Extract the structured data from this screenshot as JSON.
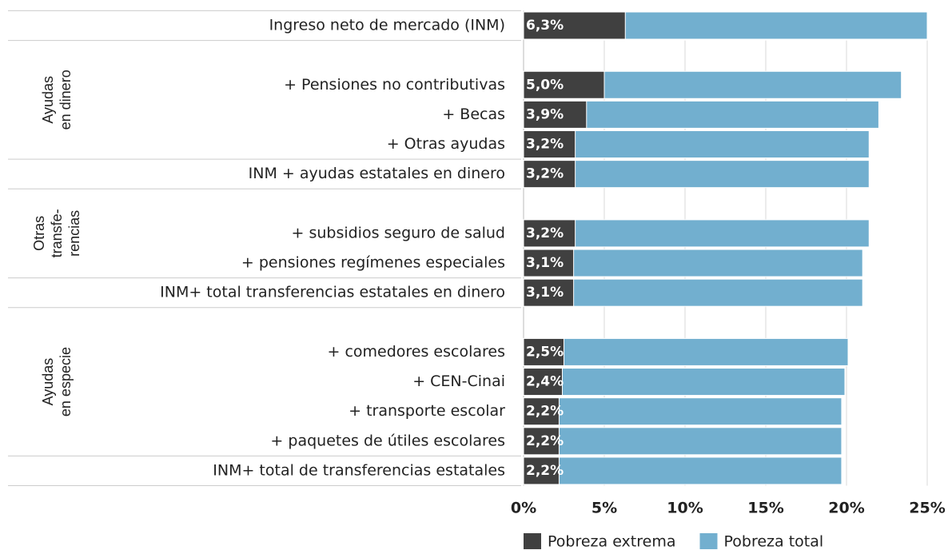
{
  "chart_data": {
    "type": "bar",
    "orientation": "horizontal",
    "overlap": true,
    "categories": [
      "Ingreso neto de mercado (INM)",
      null,
      "+ Pensiones no contributivas",
      "+ Becas",
      "+ Otras ayudas",
      "INM + ayudas estatales en dinero",
      null,
      "+ subsidios seguro de salud",
      "+ pensiones regímenes especiales",
      "INM+ total transferencias estatales en dinero",
      null,
      "+ comedores escolares",
      "+ CEN-Cinai",
      "+ transporte escolar",
      "+ paquetes de útiles escolares",
      "INM+ total de transferencias estatales"
    ],
    "groups": [
      [
        "Ayudas",
        "en dinero"
      ],
      [
        "Otras",
        "transfe-",
        "rencias"
      ],
      [
        "Ayudas",
        "en especie"
      ]
    ],
    "series": [
      {
        "name": "Pobreza total",
        "color": "#72afcf",
        "values": [
          25.0,
          null,
          23.4,
          22.0,
          21.4,
          21.4,
          null,
          21.4,
          21.0,
          21.0,
          null,
          20.1,
          19.9,
          19.7,
          19.7,
          19.7
        ]
      },
      {
        "name": "Pobreza extrema",
        "color": "#404040",
        "values": [
          6.3,
          null,
          5.0,
          3.9,
          3.2,
          3.2,
          null,
          3.2,
          3.1,
          3.1,
          null,
          2.5,
          2.4,
          2.2,
          2.2,
          2.2
        ],
        "value_labels": [
          "6,3%",
          null,
          "5,0%",
          "3,9%",
          "3,2%",
          "3,2%",
          null,
          "3,2%",
          "3,1%",
          "3,1%",
          null,
          "2,5%",
          "2,4%",
          "2,2%",
          "2,2%",
          "2,2%"
        ]
      }
    ],
    "legend_order": [
      1,
      0
    ],
    "xlim": [
      0,
      25
    ],
    "xticks": [
      {
        "value": 0,
        "label": "0%"
      },
      {
        "value": 5,
        "label": "5%"
      },
      {
        "value": 10,
        "label": "10%"
      },
      {
        "value": 15,
        "label": "15%"
      },
      {
        "value": 20,
        "label": "20%"
      },
      {
        "value": 25,
        "label": "25%"
      }
    ],
    "grid": true
  }
}
